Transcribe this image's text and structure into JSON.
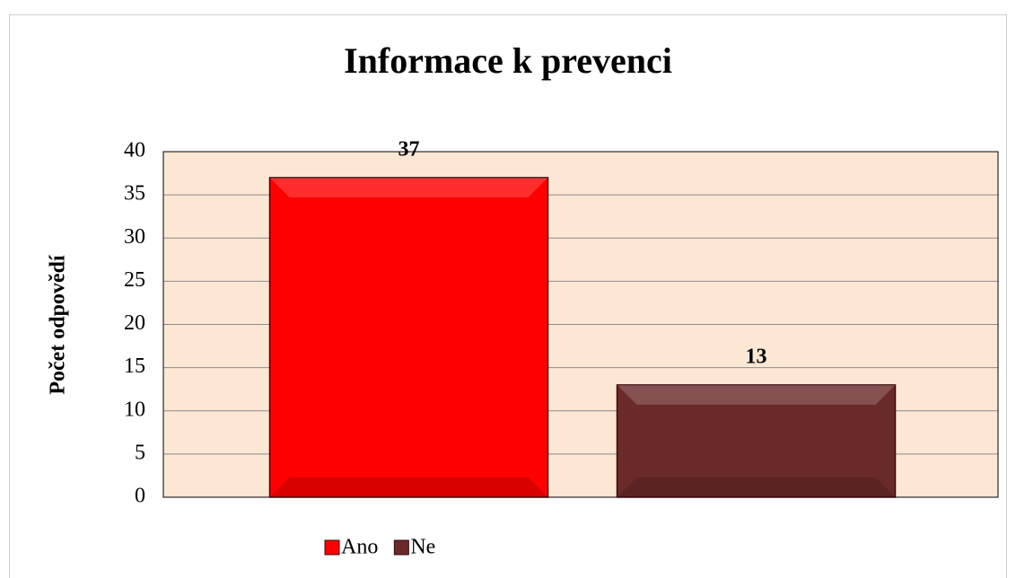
{
  "chart_data": {
    "type": "bar",
    "title": "Informace k prevenci",
    "y_label": "Počet odpovědí",
    "categories": [
      "Ano",
      "Ne"
    ],
    "values": [
      37,
      13
    ],
    "colors": [
      "#ff0000",
      "#6b2a2a"
    ],
    "ylim": [
      0,
      40
    ],
    "yticks": [
      0,
      5,
      10,
      15,
      20,
      25,
      30,
      35,
      40
    ],
    "grid": true,
    "legend": "bottom"
  }
}
